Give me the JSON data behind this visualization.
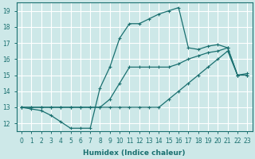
{
  "xlabel": "Humidex (Indice chaleur)",
  "background_color": "#cde8e8",
  "grid_color": "#ffffff",
  "line_color": "#1a7070",
  "xlim": [
    -0.5,
    23.5
  ],
  "ylim": [
    11.5,
    19.5
  ],
  "yticks": [
    12,
    13,
    14,
    15,
    16,
    17,
    18,
    19
  ],
  "xticks": [
    0,
    1,
    2,
    3,
    4,
    5,
    6,
    7,
    8,
    9,
    10,
    11,
    12,
    13,
    14,
    15,
    16,
    17,
    18,
    19,
    20,
    21,
    22,
    23
  ],
  "line1_x": [
    0,
    1,
    2,
    3,
    4,
    5,
    6,
    7,
    8,
    9,
    10,
    11,
    12,
    13,
    14,
    15,
    16,
    17,
    18,
    19,
    20,
    21,
    22,
    23
  ],
  "line1_y": [
    13,
    13,
    13,
    13,
    13,
    13,
    13,
    13,
    13,
    13,
    13,
    13,
    13,
    13,
    13,
    13.5,
    14,
    14.5,
    15,
    15.5,
    16,
    16.5,
    15,
    15
  ],
  "line2_x": [
    0,
    1,
    2,
    3,
    4,
    5,
    6,
    7,
    8,
    9,
    10,
    11,
    12,
    13,
    14,
    15,
    16,
    17,
    18,
    19,
    20,
    21,
    22,
    23
  ],
  "line2_y": [
    13,
    13,
    13,
    13,
    13,
    13,
    13,
    13,
    13,
    13.5,
    14.5,
    15.5,
    15.5,
    15.5,
    15.5,
    15.5,
    15.7,
    16,
    16.2,
    16.4,
    16.5,
    16.7,
    15,
    15
  ],
  "line3_x": [
    0,
    1,
    2,
    3,
    4,
    5,
    6,
    7,
    8,
    9,
    10,
    11,
    12,
    13,
    14,
    15,
    16,
    17,
    18,
    19,
    20,
    21,
    22,
    23
  ],
  "line3_y": [
    13,
    12.9,
    12.8,
    12.5,
    12.1,
    11.7,
    11.7,
    11.7,
    14.2,
    15.5,
    17.3,
    18.2,
    18.2,
    18.5,
    18.8,
    19.0,
    19.2,
    16.7,
    16.6,
    16.8,
    16.9,
    16.7,
    15,
    15.1
  ]
}
